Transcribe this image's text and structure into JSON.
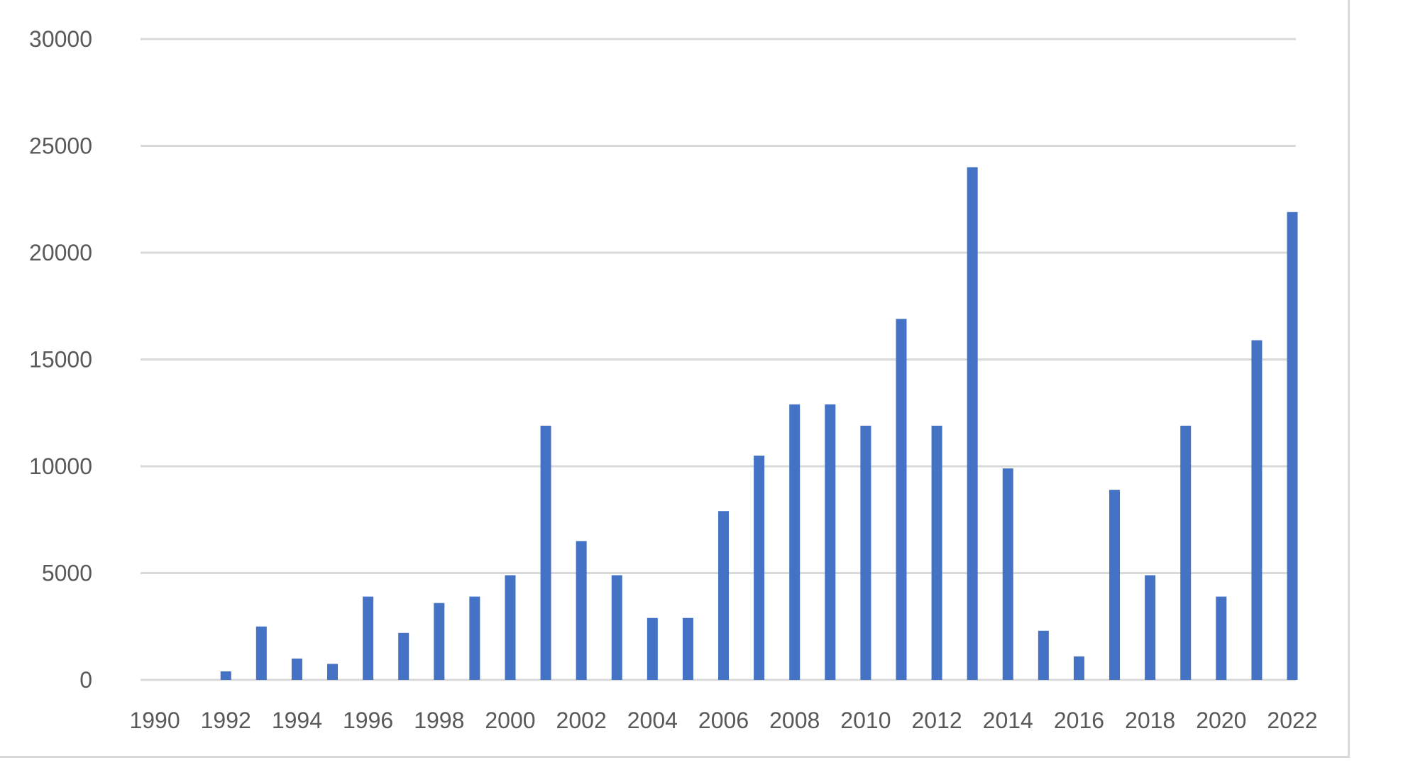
{
  "chart_data": {
    "type": "bar",
    "title": "",
    "xlabel": "",
    "ylabel": "",
    "ylim": [
      0,
      30000
    ],
    "yticks": [
      0,
      5000,
      10000,
      15000,
      20000,
      25000,
      30000
    ],
    "grid": true,
    "legend": "none",
    "bar_color": "#4472c4",
    "categories": [
      "1990",
      "1991",
      "1992",
      "1993",
      "1994",
      "1995",
      "1996",
      "1997",
      "1998",
      "1999",
      "2000",
      "2001",
      "2002",
      "2003",
      "2004",
      "2005",
      "2006",
      "2007",
      "2008",
      "2009",
      "2010",
      "2011",
      "2012",
      "2013",
      "2014",
      "2015",
      "2016",
      "2017",
      "2018",
      "2019",
      "2020",
      "2021",
      "2022"
    ],
    "xtick_labels": [
      "1990",
      "",
      "1992",
      "",
      "1994",
      "",
      "1996",
      "",
      "1998",
      "",
      "2000",
      "",
      "2002",
      "",
      "2004",
      "",
      "2006",
      "",
      "2008",
      "",
      "2010",
      "",
      "2012",
      "",
      "2014",
      "",
      "2016",
      "",
      "2018",
      "",
      "2020",
      "",
      "2022"
    ],
    "values": [
      0,
      0,
      400,
      2500,
      1000,
      750,
      3900,
      2200,
      3600,
      3900,
      4900,
      11900,
      6500,
      4900,
      2900,
      2900,
      7900,
      10500,
      12900,
      12900,
      11900,
      16900,
      11900,
      24000,
      9900,
      2300,
      1100,
      8900,
      4900,
      11900,
      3900,
      15900,
      21900
    ]
  }
}
